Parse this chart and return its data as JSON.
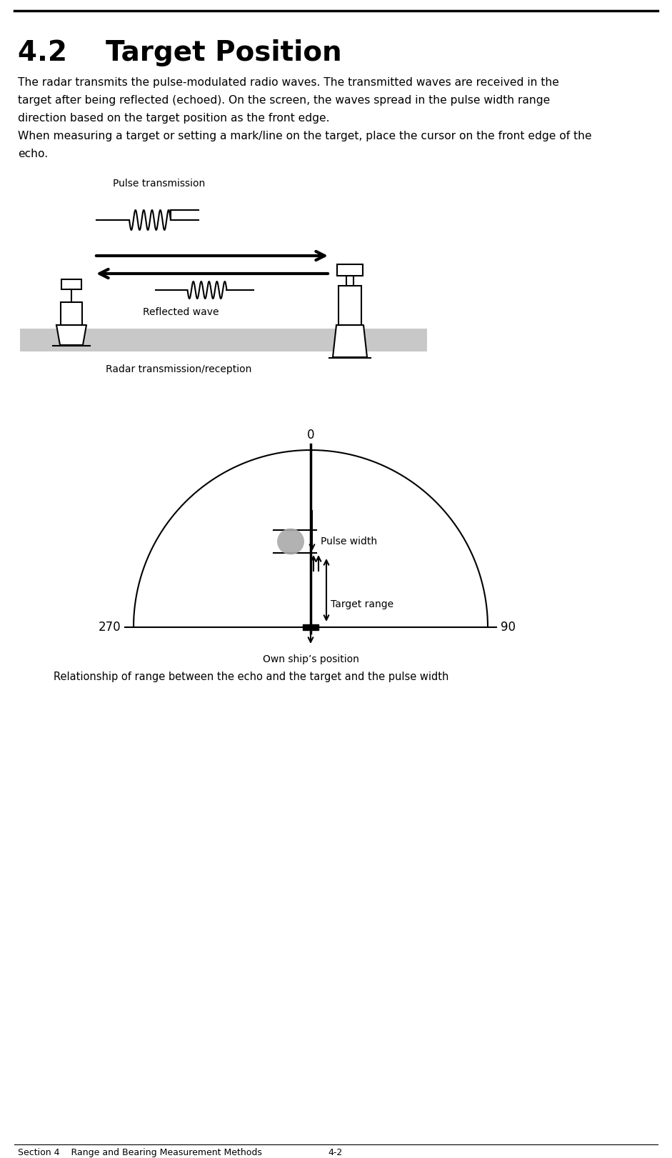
{
  "title": "4.2    Target Position",
  "body_text_line1": "The radar transmits the pulse-modulated radio waves. The transmitted waves are received in the",
  "body_text_line2": "target after being reflected (echoed). On the screen, the waves spread in the pulse width range",
  "body_text_line3": "direction based on the target position as the front edge.",
  "body_text_line4": "When measuring a target or setting a mark/line on the target, place the cursor on the front edge of the",
  "body_text_line5": "echo.",
  "label_pulse_transmission": "Pulse transmission",
  "label_reflected_wave": "Reflected wave",
  "label_radar_caption": "Radar transmission/reception",
  "label_0": "0",
  "label_270": "270",
  "label_90": "90",
  "label_pulse_width": "Pulse width",
  "label_target_range": "Target range",
  "label_own_ship": "Own ship’s position",
  "label_relationship": "Relationship of range between the echo and the target and the pulse width",
  "footer_left": "Section 4    Range and Bearing Measurement Methods",
  "footer_right": "4-2",
  "bg_color": "#ffffff",
  "text_color": "#000000",
  "gray_bar_color": "#c8c8c8"
}
